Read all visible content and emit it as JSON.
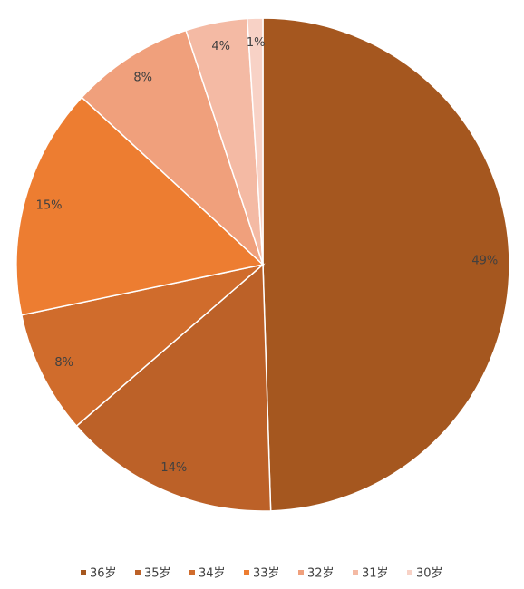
{
  "chart_data": {
    "type": "pie",
    "categories": [
      "36岁",
      "35岁",
      "34岁",
      "33岁",
      "32岁",
      "31岁",
      "30岁"
    ],
    "values": [
      49,
      14,
      8,
      15,
      8,
      4,
      1
    ],
    "value_labels": [
      "49%",
      "14%",
      "8%",
      "15%",
      "8%",
      "4%",
      "1%"
    ],
    "colors": [
      "#a5571f",
      "#bc6128",
      "#d06c2c",
      "#ed7d31",
      "#f0a07c",
      "#f4baa4",
      "#f8d2c6"
    ],
    "legend": "bottom"
  }
}
